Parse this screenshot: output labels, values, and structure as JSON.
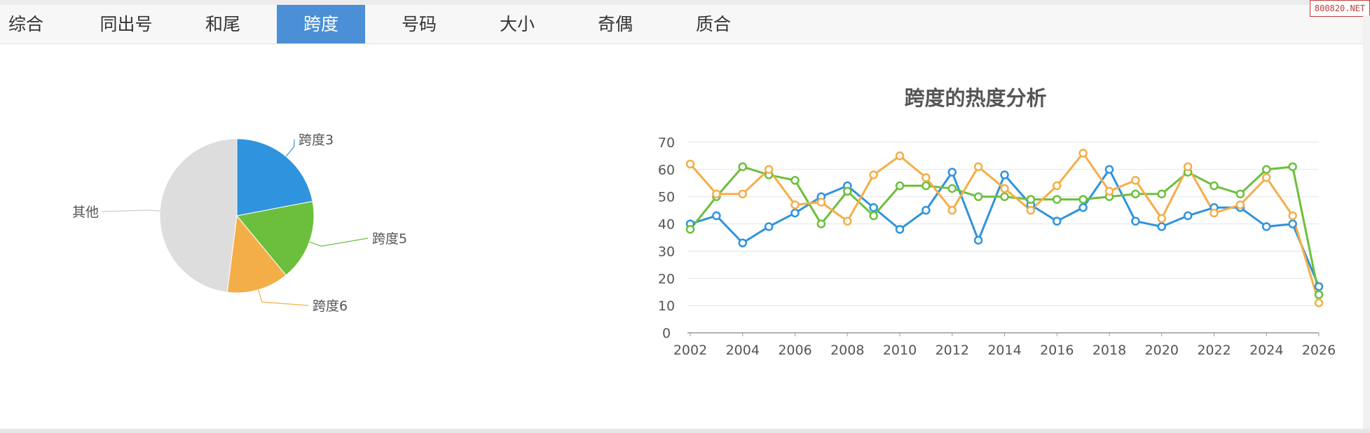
{
  "tabs": [
    {
      "label": "综合"
    },
    {
      "label": "同出号"
    },
    {
      "label": "和尾"
    },
    {
      "label": "跨度",
      "active": true
    },
    {
      "label": "号码"
    },
    {
      "label": "大小"
    },
    {
      "label": "奇偶"
    },
    {
      "label": "质合"
    }
  ],
  "watermark": "800820.NET",
  "chart_data": [
    {
      "type": "pie",
      "slices": [
        {
          "label": "跨度3",
          "value": 22,
          "color": "#2f93de"
        },
        {
          "label": "跨度5",
          "value": 17,
          "color": "#6cbf3c"
        },
        {
          "label": "跨度6",
          "value": 13,
          "color": "#f4ae48"
        },
        {
          "label": "其他",
          "value": 48,
          "color": "#dddddd"
        }
      ]
    },
    {
      "type": "line",
      "title": "跨度的热度分析",
      "ylim": [
        0,
        70
      ],
      "yticks": [
        0,
        10,
        20,
        30,
        40,
        50,
        60,
        70
      ],
      "xticks": [
        "2002",
        "2004",
        "2006",
        "2008",
        "2010",
        "2012",
        "2014",
        "2016",
        "2018",
        "2020",
        "2022",
        "2024",
        "2026"
      ],
      "x": [
        2002,
        2003,
        2004,
        2005,
        2006,
        2007,
        2008,
        2009,
        2010,
        2011,
        2012,
        2013,
        2014,
        2015,
        2016,
        2017,
        2018,
        2019,
        2020,
        2021,
        2022,
        2023,
        2024,
        2025,
        2026
      ],
      "grid": true,
      "series": [
        {
          "color": "#2f93de",
          "values": [
            40,
            43,
            33,
            39,
            44,
            50,
            54,
            46,
            38,
            45,
            59,
            34,
            58,
            47,
            41,
            46,
            60,
            41,
            39,
            43,
            46,
            46,
            39,
            40,
            17
          ]
        },
        {
          "color": "#6cbf3c",
          "values": [
            38,
            50,
            61,
            58,
            56,
            40,
            52,
            43,
            54,
            54,
            53,
            50,
            50,
            49,
            49,
            49,
            50,
            51,
            51,
            59,
            54,
            51,
            60,
            61,
            14
          ]
        },
        {
          "color": "#f4ae48",
          "values": [
            62,
            51,
            51,
            60,
            47,
            48,
            41,
            58,
            65,
            57,
            45,
            61,
            53,
            45,
            54,
            66,
            52,
            56,
            42,
            61,
            44,
            47,
            57,
            43,
            11
          ]
        }
      ]
    }
  ]
}
